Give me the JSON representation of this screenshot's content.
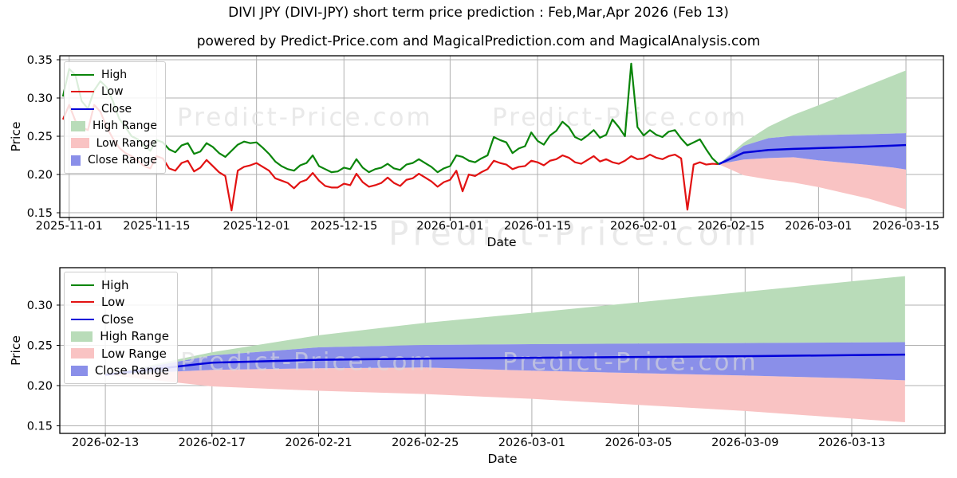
{
  "title": "DIVI JPY (DIVI-JPY) short term price prediction : Feb,Mar,Apr 2026 (Feb 13)",
  "subtitle": "powered by Predict-Price.com and MagicalPrediction.com and MagicalAnalysis.com",
  "watermark": {
    "text": "Predict-Price.com",
    "color": "rgba(219,219,219,0.62)"
  },
  "colors": {
    "high": "#0a850a",
    "low": "#e21212",
    "close": "#0000d9",
    "high_range": "#b9dcb9",
    "low_range": "#f9c3c3",
    "close_range": "#8a8fe9",
    "grid": "#b0b0b0",
    "spine": "#000000"
  },
  "legend_items": [
    {
      "label": "High",
      "swatch": "line",
      "color_key": "high"
    },
    {
      "label": "Low",
      "swatch": "line",
      "color_key": "low"
    },
    {
      "label": "Close",
      "swatch": "line",
      "color_key": "close"
    },
    {
      "label": "High Range",
      "swatch": "patch",
      "color_key": "high_range"
    },
    {
      "label": "Low Range",
      "swatch": "patch",
      "color_key": "low_range"
    },
    {
      "label": "Close Range",
      "swatch": "patch",
      "color_key": "close_range"
    }
  ],
  "prediction": {
    "dates": [
      "2026-02-13",
      "2026-02-17",
      "2026-02-21",
      "2026-02-25",
      "2026-03-01",
      "2026-03-05",
      "2026-03-09",
      "2026-03-13",
      "2026-03-15"
    ],
    "close": [
      0.2135,
      0.2285,
      0.232,
      0.2335,
      0.2345,
      0.2355,
      0.2365,
      0.2378,
      0.2385
    ],
    "high_upper": [
      0.2135,
      0.2415,
      0.2625,
      0.278,
      0.2905,
      0.3035,
      0.3165,
      0.3295,
      0.336
    ],
    "close_upper": [
      0.2135,
      0.2375,
      0.2475,
      0.2505,
      0.2515,
      0.2522,
      0.2528,
      0.2536,
      0.254
    ],
    "close_lower": [
      0.2135,
      0.2195,
      0.2215,
      0.2225,
      0.2185,
      0.2155,
      0.2125,
      0.209,
      0.2065
    ],
    "low_upper": [
      0.2135,
      0.2195,
      0.2215,
      0.2225,
      0.2185,
      0.2155,
      0.2125,
      0.209,
      0.2065
    ],
    "low_lower": [
      0.2135,
      0.199,
      0.1935,
      0.1895,
      0.1835,
      0.176,
      0.1685,
      0.159,
      0.1545
    ]
  },
  "historical": {
    "start_date": "2025-10-31",
    "interval_days": 1,
    "high": [
      0.302,
      0.338,
      0.33,
      0.296,
      0.286,
      0.31,
      0.322,
      0.314,
      0.296,
      0.273,
      0.262,
      0.25,
      0.246,
      0.237,
      0.231,
      0.245,
      0.242,
      0.233,
      0.229,
      0.238,
      0.241,
      0.227,
      0.23,
      0.241,
      0.236,
      0.228,
      0.223,
      0.231,
      0.239,
      0.243,
      0.241,
      0.242,
      0.235,
      0.227,
      0.217,
      0.211,
      0.207,
      0.205,
      0.212,
      0.215,
      0.225,
      0.211,
      0.207,
      0.203,
      0.204,
      0.209,
      0.207,
      0.22,
      0.209,
      0.203,
      0.207,
      0.209,
      0.214,
      0.208,
      0.206,
      0.213,
      0.215,
      0.22,
      0.215,
      0.21,
      0.203,
      0.208,
      0.211,
      0.225,
      0.223,
      0.218,
      0.216,
      0.221,
      0.225,
      0.249,
      0.245,
      0.242,
      0.228,
      0.234,
      0.237,
      0.255,
      0.244,
      0.239,
      0.251,
      0.257,
      0.269,
      0.262,
      0.249,
      0.245,
      0.251,
      0.258,
      0.248,
      0.252,
      0.272,
      0.262,
      0.25,
      0.345,
      0.262,
      0.251,
      0.258,
      0.252,
      0.249,
      0.256,
      0.258,
      0.247,
      0.238,
      0.242,
      0.246,
      0.233,
      0.221,
      0.2135
    ],
    "low": [
      0.272,
      0.291,
      0.27,
      0.262,
      0.258,
      0.291,
      0.282,
      0.262,
      0.247,
      0.235,
      0.228,
      0.224,
      0.218,
      0.211,
      0.208,
      0.224,
      0.221,
      0.208,
      0.205,
      0.215,
      0.218,
      0.204,
      0.209,
      0.219,
      0.211,
      0.203,
      0.198,
      0.153,
      0.205,
      0.21,
      0.212,
      0.215,
      0.21,
      0.205,
      0.195,
      0.192,
      0.189,
      0.182,
      0.19,
      0.193,
      0.202,
      0.192,
      0.185,
      0.183,
      0.183,
      0.188,
      0.186,
      0.201,
      0.19,
      0.184,
      0.186,
      0.189,
      0.196,
      0.189,
      0.185,
      0.193,
      0.195,
      0.201,
      0.196,
      0.191,
      0.184,
      0.19,
      0.193,
      0.205,
      0.178,
      0.2,
      0.198,
      0.203,
      0.207,
      0.218,
      0.215,
      0.213,
      0.207,
      0.21,
      0.211,
      0.218,
      0.216,
      0.212,
      0.218,
      0.22,
      0.225,
      0.222,
      0.216,
      0.214,
      0.219,
      0.224,
      0.217,
      0.22,
      0.216,
      0.214,
      0.218,
      0.224,
      0.22,
      0.221,
      0.226,
      0.222,
      0.22,
      0.224,
      0.226,
      0.221,
      0.154,
      0.213,
      0.216,
      0.213,
      0.214,
      0.2135
    ]
  },
  "chart_data": [
    {
      "type": "line",
      "name": "overview",
      "xlabel": "Date",
      "ylabel": "Price",
      "grid": true,
      "legend_position": "upper left",
      "xlim": [
        "2025-10-30T12:00:00Z",
        "2026-03-21T00:00:00Z"
      ],
      "ylim": [
        0.1438,
        0.3552
      ],
      "xticks": [
        "2025-11-01",
        "2025-11-15",
        "2025-12-01",
        "2025-12-15",
        "2026-01-01",
        "2026-01-15",
        "2026-02-01",
        "2026-02-15",
        "2026-03-01",
        "2026-03-15"
      ],
      "yticks": [
        {
          "v": 0.35,
          "label": "0.35"
        },
        {
          "v": 0.3,
          "label": "0.30"
        },
        {
          "v": 0.25,
          "label": "0.25"
        },
        {
          "v": 0.2,
          "label": "0.20"
        },
        {
          "v": 0.15,
          "label": "0.15"
        }
      ],
      "has_historical": true,
      "has_prediction": true
    },
    {
      "type": "line",
      "name": "prediction-detail",
      "xlabel": "Date",
      "ylabel": "Price",
      "grid": true,
      "legend_position": "upper left",
      "xlim": [
        "2026-02-11T07:00:00Z",
        "2026-03-16T12:00:00Z"
      ],
      "ylim": [
        0.1406,
        0.3465
      ],
      "xticks": [
        "2026-02-13",
        "2026-02-17",
        "2026-02-21",
        "2026-02-25",
        "2026-03-01",
        "2026-03-05",
        "2026-03-09",
        "2026-03-13"
      ],
      "yticks": [
        {
          "v": 0.3,
          "label": "0.30"
        },
        {
          "v": 0.25,
          "label": "0.25"
        },
        {
          "v": 0.2,
          "label": "0.20"
        },
        {
          "v": 0.15,
          "label": "0.15"
        }
      ],
      "has_historical": false,
      "has_prediction": true
    }
  ]
}
